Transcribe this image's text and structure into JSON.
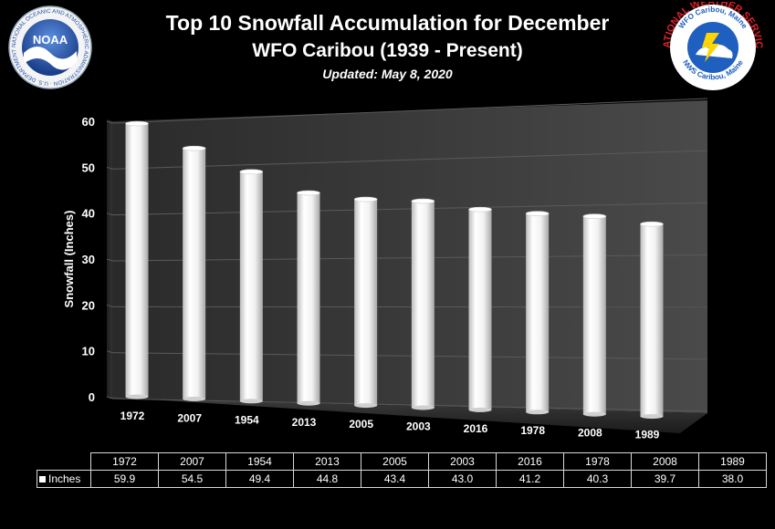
{
  "header": {
    "title": "Top 10 Snowfall Accumulation for December",
    "subtitle": "WFO Caribou (1939 - Present)",
    "updated": "Updated:  May 8, 2020"
  },
  "logos": {
    "noaa": {
      "center_text": "NOAA",
      "ring_text": "NATIONAL OCEANIC AND ATMOSPHERIC ADMINISTRATION · U.S. DEPARTMENT OF COMMERCE"
    },
    "nws": {
      "top_text": "WFO Caribou, Maine",
      "main_text": "NATIONAL WEATHER SERVICE",
      "bottom_text": "NWS Caribou, Maine"
    }
  },
  "colors": {
    "background": "#000000",
    "wall": "#3a3a3a",
    "bar": "#ffffff",
    "noaa_blue": "#1f4fa8",
    "nws_red": "#e0202a",
    "nws_blue": "#1e5fbf"
  },
  "chart_data": {
    "type": "bar",
    "title": "Top 10 Snowfall Accumulation for December",
    "ylabel": "Snowfall (Inches)",
    "xlabel": "",
    "ylim": [
      0,
      60
    ],
    "yticks": [
      0,
      10,
      20,
      30,
      40,
      50,
      60
    ],
    "grid": true,
    "categories": [
      "1972",
      "2007",
      "1954",
      "2013",
      "2005",
      "2003",
      "2016",
      "1978",
      "2008",
      "1989"
    ],
    "series": [
      {
        "name": "Inches",
        "values": [
          59.9,
          54.5,
          49.4,
          44.8,
          43.4,
          43.0,
          41.2,
          40.3,
          39.7,
          38.0
        ]
      }
    ]
  },
  "table": {
    "legend_label": "Inches",
    "values_text": [
      "59.9",
      "54.5",
      "49.4",
      "44.8",
      "43.4",
      "43.0",
      "41.2",
      "40.3",
      "39.7",
      "38.0"
    ]
  }
}
